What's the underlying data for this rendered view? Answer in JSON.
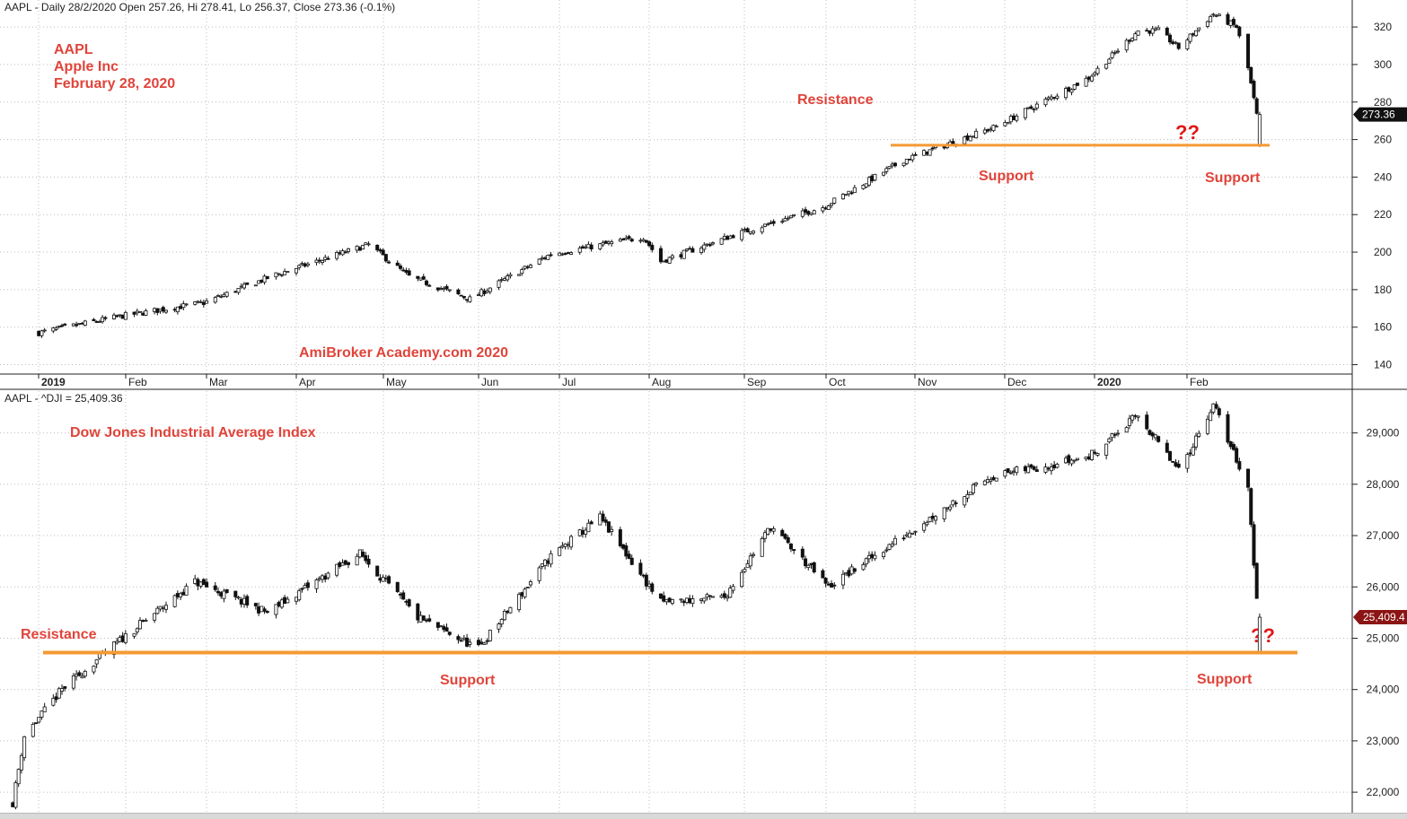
{
  "colors": {
    "accent_line": "#f59a33",
    "annotation": "#e0443a",
    "question": "#e01818",
    "grid": "#b9b9b9"
  },
  "chart_data": [
    {
      "type": "candlestick",
      "header": "AAPL - Daily 28/2/2020 Open 257.26, Hi 278.41, Lo 256.37, Close 273.36 (-0.1%)",
      "title_lines": [
        "AAPL",
        "Apple Inc",
        "February 28, 2020"
      ],
      "watermark": "AmiBroker Academy.com 2020",
      "ylim": [
        135,
        332
      ],
      "yticks": [
        140,
        160,
        180,
        200,
        220,
        240,
        260,
        280,
        300,
        320
      ],
      "last_price_label": "273.36",
      "last_price": 273.36,
      "support_level": 257,
      "annotations": {
        "resistance": "Resistance",
        "support_mid": "Support",
        "support_right": "Support",
        "question": "??"
      },
      "x_labels": [
        "2019",
        "Feb",
        "Mar",
        "Apr",
        "May",
        "Jun",
        "Jul",
        "Aug",
        "Sep",
        "Oct",
        "Nov",
        "Dec",
        "2020",
        "Feb"
      ],
      "x_labels_bold": [
        "2019",
        "2020"
      ],
      "x_points": [
        "2019-01-02",
        "2019-01-31",
        "2019-02-28",
        "2019-03-25",
        "2019-04-26",
        "2019-05-10",
        "2019-05-31",
        "2019-06-28",
        "2019-07-30",
        "2019-08-05",
        "2019-08-30",
        "2019-09-30",
        "2019-10-28",
        "2019-11-29",
        "2019-12-31",
        "2020-01-17",
        "2020-01-24",
        "2020-01-31",
        "2020-02-12",
        "2020-02-20",
        "2020-02-24",
        "2020-02-27",
        "2020-02-28"
      ],
      "close": [
        157,
        166,
        173,
        188,
        204,
        187,
        175,
        199,
        208,
        195,
        209,
        224,
        249,
        267,
        293,
        318,
        318,
        309,
        327,
        320,
        298,
        273,
        273.36
      ]
    },
    {
      "type": "candlestick",
      "header": "AAPL - ^DJI = 25,409.36",
      "title_lines": [
        "Dow Jones Industrial Average Index"
      ],
      "ylim": [
        21600,
        29850
      ],
      "yticks": [
        22000,
        23000,
        24000,
        25000,
        26000,
        27000,
        28000,
        29000
      ],
      "ytick_labels": [
        "22,000",
        "23,000",
        "24,000",
        "25,000",
        "26,000",
        "27,000",
        "28,000",
        "29,000"
      ],
      "last_price_label": "25,409.4",
      "last_price": 25409.36,
      "support_level": 24720,
      "annotations": {
        "resistance": "Resistance",
        "support_mid": "Support",
        "support_right": "Support",
        "question": "??"
      },
      "x_points": [
        "2018-12-24",
        "2018-12-28",
        "2019-01-10",
        "2019-01-31",
        "2019-02-25",
        "2019-03-22",
        "2019-04-23",
        "2019-05-13",
        "2019-06-03",
        "2019-06-28",
        "2019-07-15",
        "2019-08-05",
        "2019-08-27",
        "2019-09-12",
        "2019-10-02",
        "2019-10-28",
        "2019-11-27",
        "2019-12-31",
        "2020-01-17",
        "2020-01-31",
        "2020-02-12",
        "2020-02-24",
        "2020-02-27",
        "2020-02-28"
      ],
      "close": [
        21800,
        23100,
        24000,
        25000,
        26100,
        25500,
        26650,
        25400,
        24800,
        26600,
        27350,
        25700,
        25800,
        27180,
        26000,
        27000,
        28150,
        28540,
        29350,
        28250,
        29550,
        27950,
        25750,
        25409.36
      ]
    }
  ]
}
